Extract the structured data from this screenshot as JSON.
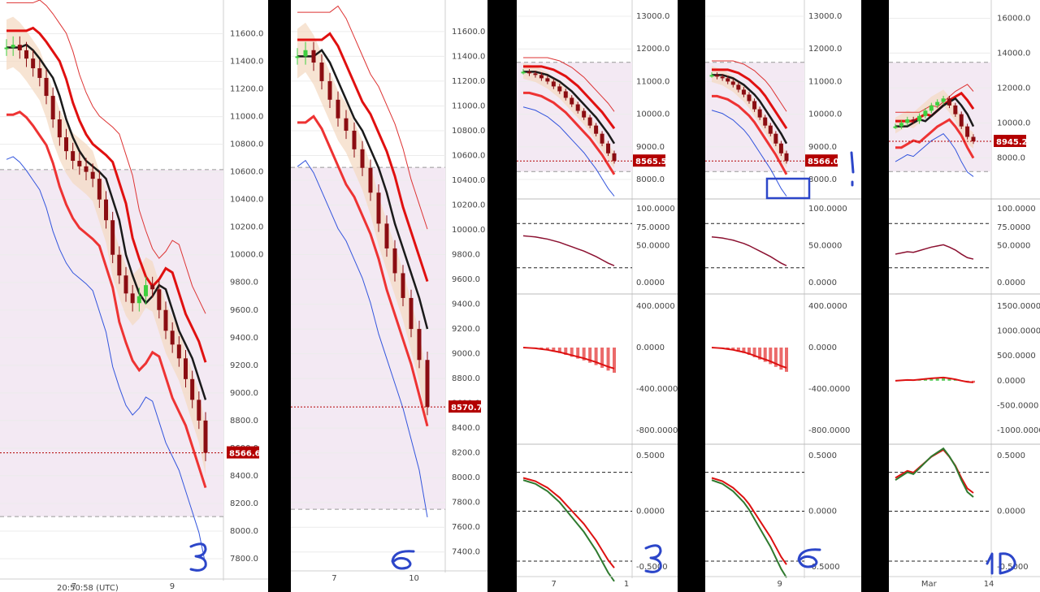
{
  "colors": {
    "bull_candle": "#3fcf3f",
    "bear_candle": "#8b0d12",
    "price_line": "#b30000",
    "ma_red": "#e01010",
    "ma_dark": "#1a1a1a",
    "cloud_fill": "#f3d9c0",
    "zone_fill": "#f3e9f3",
    "macd_pos": "#3fbf3f",
    "macd_neg": "#e85050",
    "annotation": "#2c46c9"
  },
  "annotations": [
    {
      "panel": 0,
      "text": "3"
    },
    {
      "panel": 1,
      "text": "6"
    },
    {
      "panel": 2,
      "text": "3"
    },
    {
      "panel": 3,
      "text": "6"
    },
    {
      "panel": 4,
      "text": "1D"
    }
  ],
  "chart_data": [
    {
      "type": "line",
      "timeframe_note": "3",
      "price_ticks": [
        "11600.0",
        "11400.0",
        "11200.0",
        "11000.0",
        "10800.0",
        "10600.0",
        "10400.0",
        "10200.0",
        "10000.0",
        "9800.0",
        "9600.0",
        "9400.0",
        "9200.0",
        "9000.0",
        "8800.0",
        "8600.0",
        "8400.0",
        "8200.0",
        "8000.0",
        "7800.0"
      ],
      "ylim": [
        7700,
        11750
      ],
      "x_ticks": [
        "7",
        "9"
      ],
      "last_price": "8566.6",
      "price_series": [
        11500,
        11520,
        11480,
        11420,
        11350,
        11280,
        11150,
        10980,
        10850,
        10750,
        10680,
        10640,
        10600,
        10550,
        10400,
        10250,
        10000,
        9850,
        9720,
        9650,
        9700,
        9780,
        9750,
        9600,
        9450,
        9350,
        9250,
        9100,
        8950,
        8800,
        8566.6
      ],
      "footer_partial": "20:50:58 (UTC)"
    },
    {
      "type": "line",
      "timeframe_note": "6",
      "price_ticks": [
        "11600.0",
        "11400.0",
        "11200.0",
        "11000.0",
        "10800.0",
        "10600.0",
        "10400.0",
        "10200.0",
        "10000.0",
        "9800.0",
        "9600.0",
        "9400.0",
        "9200.0",
        "9000.0",
        "8800.0",
        "8600.0",
        "8400.0",
        "8200.0",
        "8000.0",
        "7800.0",
        "7600.0",
        "7400.0"
      ],
      "ylim": [
        7300,
        11750
      ],
      "x_ticks": [
        "7",
        "10"
      ],
      "last_price": "8570.7",
      "price_series": [
        11400,
        11450,
        11350,
        11200,
        11050,
        10900,
        10800,
        10650,
        10500,
        10300,
        10050,
        9850,
        9650,
        9450,
        9200,
        8950,
        8570.7
      ]
    },
    {
      "type": "line",
      "timeframe_note": "3",
      "price_ticks": [
        "13000.0",
        "12000.0",
        "11000.0",
        "10000.0",
        "9000.0",
        "8000.0"
      ],
      "ylim": [
        7700,
        13100
      ],
      "x_ticks": [
        "7",
        "1"
      ],
      "last_price": "8565.5",
      "price_series": [
        11300,
        11250,
        11200,
        11100,
        11000,
        10850,
        10700,
        10500,
        10300,
        10100,
        9900,
        9650,
        9400,
        9100,
        8800,
        8565.5
      ],
      "stoch_ticks": [
        "100.0000",
        "75.0000",
        "50.0000",
        "0.0000"
      ],
      "macd_ticks": [
        "400.0000",
        "0.0000",
        "-400.0000",
        "-800.0000"
      ],
      "osc_ticks": [
        "0.5000",
        "0.0000",
        "-0.5000"
      ]
    },
    {
      "type": "line",
      "timeframe_note": "6",
      "price_ticks": [
        "13000.0",
        "12000.0",
        "11000.0",
        "10000.0",
        "9000.0",
        "8000.0"
      ],
      "ylim": [
        7700,
        13100
      ],
      "x_ticks": [
        "9"
      ],
      "last_price": "8566.0",
      "price_series": [
        11200,
        11150,
        11100,
        11000,
        10900,
        10750,
        10600,
        10400,
        10150,
        9900,
        9650,
        9400,
        9100,
        8800,
        8566.0
      ],
      "stoch_ticks": [
        "100.0000",
        "50.0000",
        "0.0000"
      ],
      "macd_ticks": [
        "400.0000",
        "0.0000",
        "-400.0000",
        "-800.0000"
      ],
      "osc_ticks": [
        "0.5000",
        "0.0000",
        "-0.5000"
      ]
    },
    {
      "type": "line",
      "timeframe_note": "1D",
      "price_ticks": [
        "16000.0",
        "14000.0",
        "12000.0",
        "10000.0",
        "8000.0"
      ],
      "ylim": [
        6200,
        16300
      ],
      "x_ticks": [
        "Mar",
        "14"
      ],
      "last_price": "8945.2",
      "price_series": [
        9800,
        10000,
        10200,
        10100,
        10400,
        10700,
        11000,
        11200,
        11400,
        11000,
        10500,
        9800,
        9200,
        8945.2
      ],
      "stoch_ticks": [
        "100.0000",
        "75.0000",
        "50.0000",
        "0.0000"
      ],
      "macd_ticks": [
        "1500.0000",
        "1000.0000",
        "500.0000",
        "0.0000",
        "-500.0000",
        "-1000.0000"
      ],
      "osc_ticks": [
        "0.5000",
        "0.0000",
        "-0.5000"
      ]
    }
  ]
}
